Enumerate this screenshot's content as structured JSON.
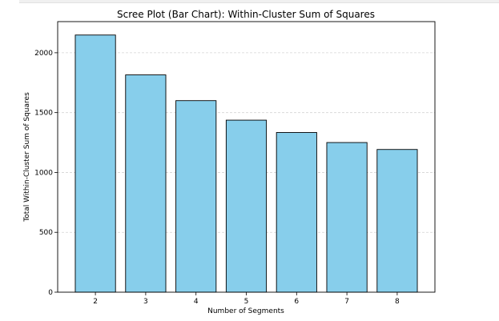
{
  "chart_data": {
    "type": "bar",
    "title": "Scree Plot (Bar Chart): Within-Cluster Sum of Squares",
    "xlabel": "Number of Segments",
    "ylabel": "Total Within-Cluster Sum of Squares",
    "categories": [
      "2",
      "3",
      "4",
      "5",
      "6",
      "7",
      "8"
    ],
    "values": [
      2148,
      1815,
      1600,
      1437,
      1334,
      1250,
      1192
    ],
    "ylim": [
      0,
      2260
    ],
    "yticks": [
      0,
      500,
      1000,
      1500,
      2000
    ],
    "grid": "y-dashed",
    "colors": {
      "bar": "#87ceeb",
      "edge": "#000000",
      "grid": "#d4d4d4"
    }
  }
}
